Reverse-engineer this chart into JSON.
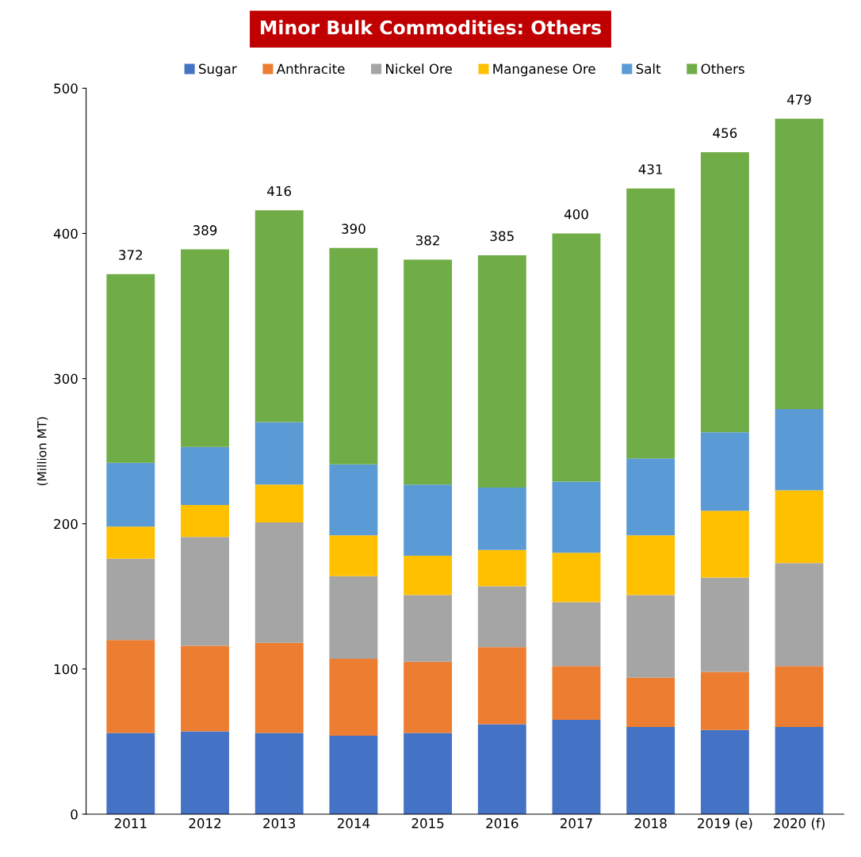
{
  "chart_data": {
    "type": "bar",
    "stacked": true,
    "title": "Minor Bulk Commodities: Others",
    "ylabel": "(Million MT)",
    "categories": [
      "2011",
      "2012",
      "2013",
      "2014",
      "2015",
      "2016",
      "2017",
      "2018",
      "2019 (e)",
      "2020 (f)"
    ],
    "series": [
      {
        "name": "Sugar",
        "color": "#4472c4",
        "values": [
          56,
          57,
          56,
          54,
          56,
          62,
          65,
          60,
          58,
          60
        ]
      },
      {
        "name": "Anthracite",
        "color": "#ed7d31",
        "values": [
          64,
          59,
          62,
          53,
          49,
          53,
          37,
          34,
          40,
          42
        ]
      },
      {
        "name": "Nickel Ore",
        "color": "#a5a5a5",
        "values": [
          56,
          75,
          83,
          57,
          46,
          42,
          44,
          57,
          65,
          71
        ]
      },
      {
        "name": "Manganese Ore",
        "color": "#ffc000",
        "values": [
          22,
          22,
          26,
          28,
          27,
          25,
          34,
          41,
          46,
          50
        ]
      },
      {
        "name": "Salt",
        "color": "#5b9bd5",
        "values": [
          44,
          40,
          43,
          49,
          49,
          43,
          49,
          53,
          54,
          56
        ]
      },
      {
        "name": "Others",
        "color": "#70ad47",
        "values": [
          130,
          136,
          146,
          149,
          155,
          160,
          171,
          186,
          193,
          200
        ]
      }
    ],
    "totals": [
      "372",
      "389",
      "416",
      "390",
      "382",
      "385",
      "400",
      "431",
      "456",
      "479"
    ],
    "ylim": [
      0,
      500
    ],
    "yticks": [
      0,
      100,
      200,
      300,
      400,
      500
    ],
    "grid": false,
    "legend": "top"
  }
}
